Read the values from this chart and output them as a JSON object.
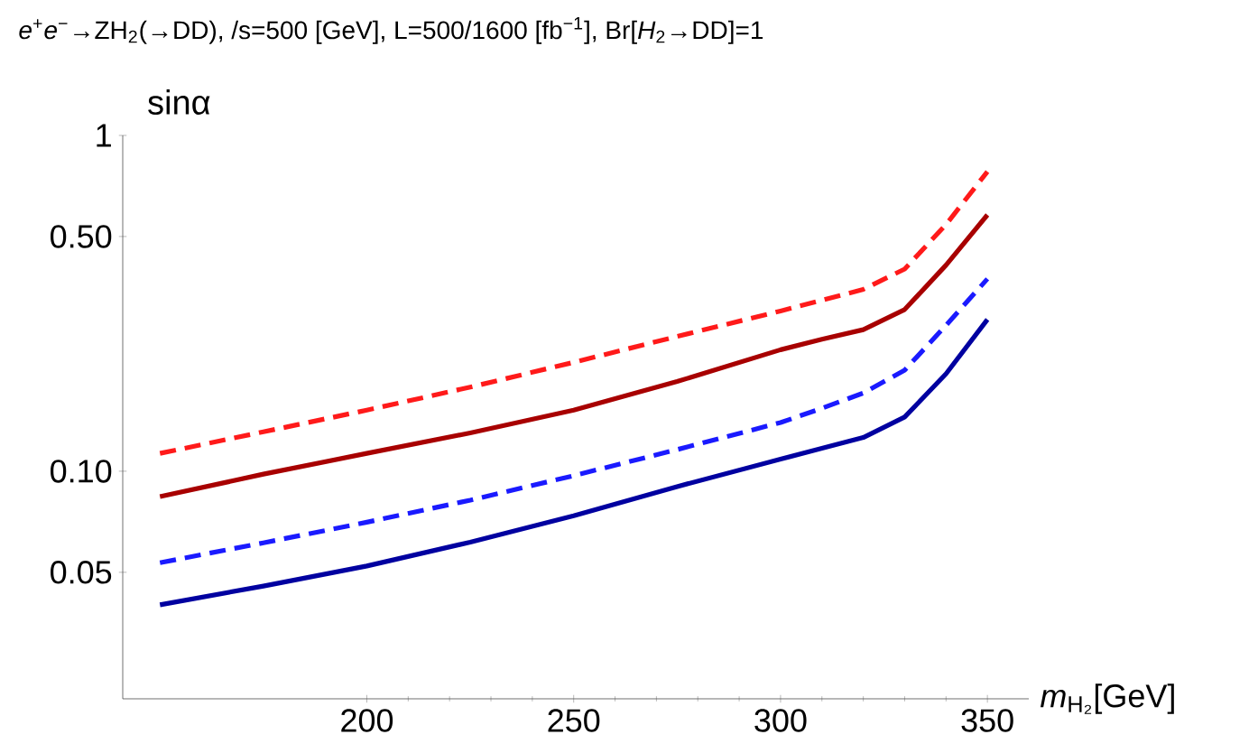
{
  "chart_data": {
    "type": "line",
    "title": "*e*$^{+}$*e*$^{−}$→ZH$_{2}$(→DD), /s=500 [GeV], L=500/1600 [fb$^{−1}$], Br[*H*$_{2}$→DD]=1",
    "xlabel": "*m*$_{H₂}$[GeV]",
    "ylabel": "sinα",
    "log": "y",
    "grid": false,
    "marker": "none",
    "xlim": [
      141,
      360
    ],
    "ylim": [
      0.021,
      1
    ],
    "xticks": [
      200,
      250,
      300,
      350
    ],
    "yticks": [
      0.05,
      {
        "value": 0.1,
        "label": "0.10"
      },
      {
        "value": 0.5,
        "label": "0.50"
      },
      1
    ],
    "series": [
      {
        "color": "#ff1a1a",
        "line_style": "dashed",
        "x": [
          150,
          175,
          200,
          225,
          250,
          275,
          300,
          310,
          320,
          330,
          340,
          350
        ],
        "values": [
          0.113,
          0.131,
          0.152,
          0.178,
          0.211,
          0.252,
          0.3,
          0.323,
          0.348,
          0.4,
          0.543,
          0.78
        ]
      },
      {
        "color": "#a80000",
        "line_style": "solid",
        "x": [
          150,
          175,
          200,
          225,
          250,
          275,
          300,
          310,
          320,
          330,
          340,
          350
        ],
        "values": [
          0.084,
          0.098,
          0.113,
          0.13,
          0.152,
          0.185,
          0.23,
          0.247,
          0.264,
          0.303,
          0.411,
          0.58
        ]
      },
      {
        "color": "#1a1aff",
        "line_style": "dashed",
        "x": [
          150,
          175,
          200,
          225,
          250,
          275,
          300,
          310,
          320,
          330,
          340,
          350
        ],
        "values": [
          0.0534,
          0.0612,
          0.0705,
          0.082,
          0.097,
          0.116,
          0.1396,
          0.154,
          0.171,
          0.2,
          0.272,
          0.374
        ]
      },
      {
        "color": "#0000a0",
        "line_style": "solid",
        "x": [
          150,
          175,
          200,
          225,
          250,
          275,
          300,
          310,
          320,
          330,
          340,
          350
        ],
        "values": [
          0.04,
          0.0455,
          0.0522,
          0.0615,
          0.0737,
          0.09,
          0.1086,
          0.117,
          0.126,
          0.145,
          0.195,
          0.283
        ]
      }
    ]
  }
}
